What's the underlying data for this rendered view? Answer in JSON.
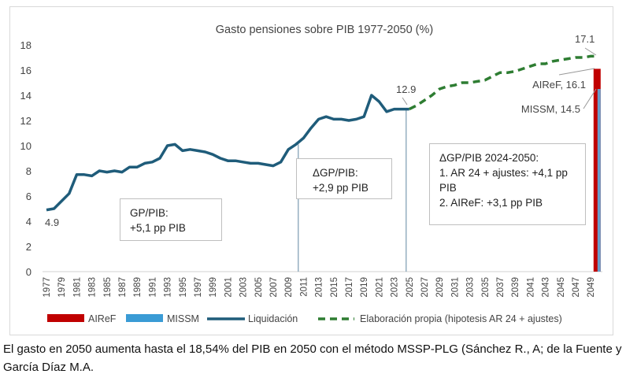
{
  "chart_data": {
    "type": "line",
    "title": "Gasto pensiones sobre PIB 1977-2050 (%)",
    "ylim": [
      0,
      18
    ],
    "yticks": [
      0,
      2,
      4,
      6,
      8,
      10,
      12,
      14,
      16,
      18
    ],
    "xlim": [
      1977,
      2050
    ],
    "xtick_labels": [
      "1977",
      "1979",
      "1981",
      "1983",
      "1985",
      "1987",
      "1989",
      "1991",
      "1993",
      "1995",
      "1997",
      "1999",
      "2001",
      "2003",
      "2005",
      "2007",
      "2009",
      "2011",
      "2013",
      "2015",
      "2017",
      "2019",
      "2021",
      "2023",
      "2025",
      "2027",
      "2029",
      "2031",
      "2033",
      "2035",
      "2037",
      "2039",
      "2041",
      "2043",
      "2045",
      "2047",
      "2049"
    ],
    "grid": false,
    "legend_position": "bottom",
    "series": [
      {
        "name": "Liquidación",
        "kind": "line",
        "color": "#1f5c7a",
        "x": [
          1977,
          1978,
          1979,
          1980,
          1981,
          1982,
          1983,
          1984,
          1985,
          1986,
          1987,
          1988,
          1989,
          1990,
          1991,
          1992,
          1993,
          1994,
          1995,
          1996,
          1997,
          1998,
          1999,
          2000,
          2001,
          2002,
          2003,
          2004,
          2005,
          2006,
          2007,
          2008,
          2009,
          2010,
          2011,
          2012,
          2013,
          2014,
          2015,
          2016,
          2017,
          2018,
          2019,
          2020,
          2021,
          2022,
          2023,
          2024,
          2025
        ],
        "values": [
          4.9,
          5.0,
          5.6,
          6.2,
          7.7,
          7.7,
          7.6,
          8.0,
          7.9,
          8.0,
          7.9,
          8.3,
          8.3,
          8.6,
          8.7,
          9.0,
          10.0,
          10.1,
          9.6,
          9.7,
          9.6,
          9.5,
          9.3,
          9.0,
          8.8,
          8.8,
          8.7,
          8.6,
          8.6,
          8.5,
          8.4,
          8.7,
          9.7,
          10.1,
          10.6,
          11.4,
          12.1,
          12.3,
          12.1,
          12.1,
          12.0,
          12.1,
          12.3,
          14.0,
          13.5,
          12.7,
          12.9,
          12.9,
          12.9
        ]
      },
      {
        "name": "Elaboración propia (hipotesis AR 24 + ajustes)",
        "kind": "dashed-line",
        "color": "#2e7d32",
        "x": [
          2025,
          2026,
          2027,
          2028,
          2029,
          2030,
          2031,
          2032,
          2033,
          2034,
          2035,
          2036,
          2037,
          2038,
          2039,
          2040,
          2041,
          2042,
          2043,
          2044,
          2045,
          2046,
          2047,
          2048,
          2049,
          2050
        ],
        "values": [
          12.9,
          13.2,
          13.6,
          14.0,
          14.5,
          14.7,
          14.8,
          15.0,
          15.0,
          15.1,
          15.2,
          15.5,
          15.8,
          15.8,
          15.9,
          16.1,
          16.3,
          16.5,
          16.5,
          16.7,
          16.8,
          16.9,
          17.0,
          17.0,
          17.1,
          17.1
        ]
      },
      {
        "name": "AIReF",
        "kind": "bar",
        "color": "#c00000",
        "x": [
          2050
        ],
        "values": [
          16.1
        ]
      },
      {
        "name": "MISSM",
        "kind": "bar",
        "color": "#3a9bd5",
        "x": [
          2050
        ],
        "values": [
          14.5
        ]
      }
    ],
    "data_labels": {
      "start": "4.9",
      "mid": "12.9",
      "end": "17.1",
      "airef": "AIReF, 16.1",
      "missm": "MISSM, 14.5"
    },
    "vertical_markers": [
      2010,
      2025
    ],
    "annotations": {
      "box1": [
        "GP/PIB:",
        "+5,1 pp PIB"
      ],
      "box2": [
        "ΔGP/PIB:",
        "+2,9 pp PIB"
      ],
      "box3": [
        "ΔGP/PIB 2024-2050:",
        "1. AR 24 + ajustes: +4,1 pp PIB",
        "2. AIReF: +3,1 pp PIB"
      ]
    }
  },
  "caption": "El gasto en 2050 aumenta hasta el 18,54% del PIB en 2050 con el método MSSP-PLG (Sánchez R., A; de la Fuente y García Díaz M.A."
}
